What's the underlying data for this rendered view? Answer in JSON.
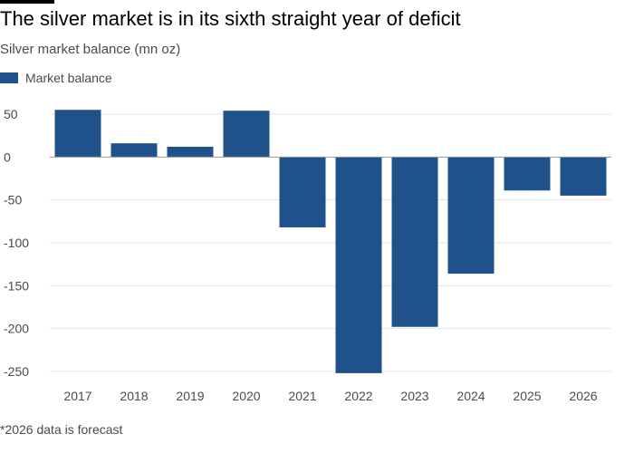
{
  "colors": {
    "bar": "#1f528a",
    "grid": "#e6e6e6",
    "zero": "#9a9a9a",
    "text": "#4a4a4a"
  },
  "chart_data": {
    "type": "bar",
    "title": "The silver market is in its sixth straight year of deficit",
    "subtitle": "Silver market balance (mn oz)",
    "legend": [
      "Market balance"
    ],
    "categories": [
      "2017",
      "2018",
      "2019",
      "2020",
      "2021",
      "2022",
      "2023",
      "2024",
      "2025",
      "2026"
    ],
    "series": [
      {
        "name": "Market balance",
        "values": [
          55,
          16,
          12,
          54,
          -82,
          -252,
          -198,
          -136,
          -39,
          -45
        ]
      }
    ],
    "yticks": [
      50,
      0,
      -50,
      -100,
      -150,
      -200,
      -250
    ],
    "ytick_labels": [
      "50",
      "0",
      "-50",
      "-100",
      "-150",
      "-200",
      "-250"
    ],
    "ylim": [
      -250,
      50
    ],
    "xlabel": "",
    "ylabel": "",
    "grid": true,
    "footnote": "*2026 data is forecast"
  }
}
